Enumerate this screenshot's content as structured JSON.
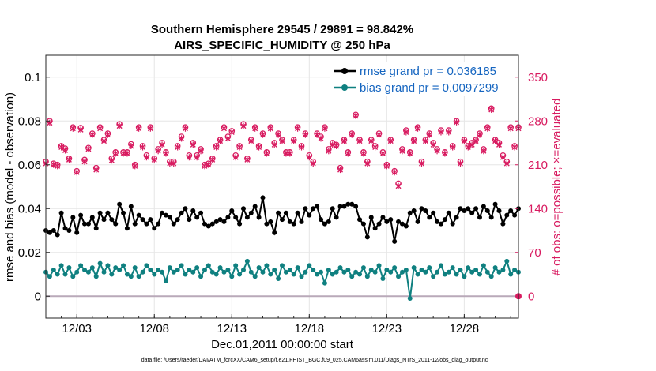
{
  "chart_data": {
    "type": "line",
    "title": "Southern Hemisphere 29545 / 29891 = 98.842%",
    "subtitle": "AIRS_SPECIFIC_HUMIDITY @ 250 hPa",
    "xlabel": "Dec.01,2011 00:00:00 start",
    "ylabel": "rmse and bias (model - observation)",
    "ylabel_right": "# of obs: o=possible; ×=evaluated",
    "footnote": "data file: /Users/raeder/DAI/ATM_forcXX/CAM6_setup/f.e21.FHIST_BGC.f09_025.CAM6assim.011/Diags_NTrS_2011-12/obs_diag_output.nc",
    "x_tick_labels": [
      "12/03",
      "12/08",
      "12/13",
      "12/18",
      "12/23",
      "12/28"
    ],
    "x_tick_values": [
      3,
      8,
      13,
      18,
      23,
      28
    ],
    "xlim": [
      1,
      31.5
    ],
    "ylim": [
      -0.01,
      0.11
    ],
    "y_ticks": [
      0,
      0.02,
      0.04,
      0.06,
      0.08,
      0.1
    ],
    "y_tick_labels": [
      "0",
      "0.02",
      "0.04",
      "0.06",
      "0.08",
      "0.1"
    ],
    "ylim_right": [
      -35,
      385
    ],
    "y_ticks_right": [
      0,
      70,
      140,
      210,
      280,
      350
    ],
    "y_tick_labels_right": [
      "0",
      "70",
      "140",
      "210",
      "280",
      "350"
    ],
    "legend": {
      "placement": "top-right",
      "entries": [
        "rmse grand pr = 0.036185",
        "bias grand pr = 0.0097299"
      ]
    },
    "colors": {
      "rmse": "#000000",
      "bias": "#0f8080",
      "obs": "#d81b60",
      "zero_line": "#b9a9b9",
      "legend_text": "#1565c0"
    },
    "series": [
      {
        "name": "rmse grand pr = 0.036185",
        "start": 1.0,
        "step": 0.25,
        "values": [
          0.03,
          0.029,
          0.03,
          0.028,
          0.038,
          0.031,
          0.03,
          0.036,
          0.029,
          0.037,
          0.033,
          0.033,
          0.036,
          0.031,
          0.038,
          0.035,
          0.038,
          0.035,
          0.033,
          0.042,
          0.038,
          0.031,
          0.041,
          0.033,
          0.037,
          0.035,
          0.033,
          0.035,
          0.031,
          0.033,
          0.038,
          0.037,
          0.036,
          0.033,
          0.035,
          0.038,
          0.04,
          0.035,
          0.039,
          0.036,
          0.038,
          0.033,
          0.032,
          0.033,
          0.034,
          0.035,
          0.034,
          0.036,
          0.039,
          0.036,
          0.033,
          0.04,
          0.036,
          0.038,
          0.041,
          0.036,
          0.045,
          0.033,
          0.034,
          0.029,
          0.038,
          0.035,
          0.038,
          0.034,
          0.033,
          0.038,
          0.034,
          0.04,
          0.037,
          0.04,
          0.041,
          0.035,
          0.033,
          0.034,
          0.04,
          0.036,
          0.041,
          0.041,
          0.042,
          0.042,
          0.041,
          0.035,
          0.033,
          0.027,
          0.036,
          0.031,
          0.033,
          0.036,
          0.034,
          0.035,
          0.025,
          0.034,
          0.033,
          0.032,
          0.038,
          0.039,
          0.034,
          0.04,
          0.039,
          0.036,
          0.038,
          0.034,
          0.033,
          0.035,
          0.038,
          0.033,
          0.036,
          0.04,
          0.039,
          0.04,
          0.038,
          0.04,
          0.036,
          0.041,
          0.039,
          0.036,
          0.042,
          0.039,
          0.033,
          0.037,
          0.039,
          0.037,
          0.04,
          0.038,
          0.035,
          0.04,
          0.039,
          0.037,
          0.032,
          0.038,
          0.036,
          0.04,
          0.033,
          0.038,
          0.041,
          0.036,
          0.029,
          0.038,
          0.036,
          0.048,
          0.034,
          0.031,
          0.036,
          0.037,
          0.041,
          0.042,
          0.043
        ]
      },
      {
        "name": "bias grand pr = 0.0097299",
        "start": 1.0,
        "step": 0.25,
        "values": [
          0.011,
          0.009,
          0.012,
          0.01,
          0.014,
          0.01,
          0.013,
          0.009,
          0.011,
          0.014,
          0.012,
          0.011,
          0.013,
          0.009,
          0.015,
          0.011,
          0.014,
          0.01,
          0.013,
          0.012,
          0.014,
          0.01,
          0.009,
          0.013,
          0.009,
          0.011,
          0.014,
          0.012,
          0.01,
          0.012,
          0.011,
          0.007,
          0.013,
          0.011,
          0.012,
          0.014,
          0.01,
          0.012,
          0.011,
          0.013,
          0.009,
          0.012,
          0.014,
          0.011,
          0.01,
          0.013,
          0.011,
          0.012,
          0.009,
          0.014,
          0.01,
          0.012,
          0.016,
          0.011,
          0.009,
          0.013,
          0.011,
          0.014,
          0.01,
          0.012,
          0.008,
          0.014,
          0.011,
          0.012,
          0.01,
          0.013,
          0.009,
          0.011,
          0.014,
          0.012,
          0.01,
          0.011,
          0.006,
          0.012,
          0.01,
          0.011,
          0.013,
          0.011,
          0.012,
          0.009,
          0.011,
          0.01,
          0.013,
          0.009,
          0.012,
          0.011,
          0.014,
          0.008,
          0.012,
          0.011,
          0.013,
          0.009,
          0.011,
          0.012,
          -0.001,
          0.013,
          0.01,
          0.012,
          0.011,
          0.013,
          0.009,
          0.011,
          0.014,
          0.01,
          0.011,
          0.013,
          0.01,
          0.012,
          0.009,
          0.013,
          0.011,
          0.012,
          0.01,
          0.014,
          0.011,
          0.009,
          0.013,
          0.011,
          0.012,
          0.016,
          0.01,
          0.012,
          0.011,
          0.013,
          0.009,
          0.012,
          0.011,
          0.013,
          0.01,
          0.012,
          0.01,
          0.013,
          0.009,
          0.011,
          0.012,
          0.01,
          0.008,
          0.011,
          0.01,
          0.008,
          0.012,
          0.009,
          0.01,
          0.008,
          0.004,
          -0.001,
          -0.001
        ]
      },
      {
        "name": "# of obs possible",
        "axis": "right",
        "marker": "o",
        "start": 1.0,
        "step": 0.25,
        "values": [
          215,
          280,
          212,
          210,
          240,
          236,
          220,
          270,
          200,
          269,
          218,
          237,
          260,
          205,
          270,
          250,
          260,
          220,
          230,
          275,
          230,
          230,
          243,
          210,
          270,
          240,
          225,
          270,
          220,
          235,
          245,
          230,
          215,
          215,
          240,
          255,
          270,
          225,
          245,
          225,
          235,
          210,
          212,
          220,
          240,
          250,
          270,
          255,
          264,
          225,
          240,
          275,
          220,
          250,
          270,
          240,
          260,
          230,
          270,
          245,
          260,
          250,
          230,
          230,
          250,
          270,
          240,
          260,
          225,
          215,
          260,
          255,
          270,
          235,
          245,
          242,
          205,
          250,
          230,
          260,
          290,
          250,
          230,
          215,
          250,
          240,
          260,
          230,
          210,
          250,
          200,
          180,
          235,
          265,
          230,
          250,
          270,
          215,
          250,
          260,
          245,
          235,
          265,
          230,
          265,
          240,
          280,
          215,
          250,
          240,
          245,
          250,
          260,
          235,
          270,
          300,
          250,
          245,
          225,
          215,
          270,
          240,
          270,
          250,
          270,
          240,
          250,
          270,
          230,
          260,
          250,
          270,
          240,
          270,
          250,
          260,
          285,
          240,
          270,
          245,
          255,
          265,
          250,
          240,
          220,
          282,
          240,
          270
        ]
      },
      {
        "name": "# of obs evaluated",
        "axis": "right",
        "marker": "x",
        "start": 1.0,
        "step": 0.25,
        "values": [
          212,
          277,
          210,
          208,
          238,
          233,
          218,
          268,
          198,
          266,
          215,
          235,
          258,
          202,
          268,
          248,
          258,
          217,
          228,
          272,
          228,
          228,
          240,
          208,
          268,
          238,
          222,
          268,
          218,
          232,
          242,
          228,
          212,
          212,
          238,
          252,
          268,
          222,
          242,
          222,
          232,
          208,
          210,
          218,
          238,
          248,
          268,
          252,
          262,
          222,
          238,
          272,
          218,
          248,
          268,
          238,
          258,
          228,
          268,
          242,
          258,
          248,
          228,
          228,
          248,
          268,
          238,
          258,
          222,
          212,
          258,
          252,
          268,
          232,
          242,
          240,
          202,
          248,
          228,
          258,
          288,
          248,
          228,
          212,
          248,
          238,
          258,
          228,
          208,
          248,
          198,
          176,
          232,
          262,
          228,
          248,
          268,
          212,
          248,
          258,
          242,
          232,
          262,
          228,
          262,
          238,
          278,
          212,
          248,
          238,
          242,
          248,
          258,
          232,
          268,
          298,
          248,
          242,
          222,
          212,
          268,
          238,
          268,
          248,
          268,
          238,
          248,
          268,
          228,
          258,
          248,
          268,
          238,
          268,
          248,
          258,
          282,
          238,
          268,
          242,
          252,
          262,
          248,
          238,
          218,
          280,
          238,
          268
        ]
      }
    ]
  }
}
